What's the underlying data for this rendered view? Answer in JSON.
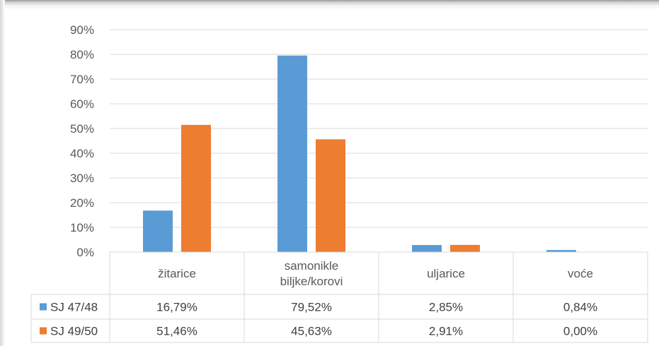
{
  "chart_data": {
    "type": "bar",
    "categories": [
      [
        "žitarice"
      ],
      [
        "samonikle",
        "biljke/korovi"
      ],
      [
        "uljarice"
      ],
      [
        "voće"
      ]
    ],
    "series": [
      {
        "name": "SJ 47/48",
        "color": "#5b9bd5",
        "values": [
          16.79,
          79.52,
          2.85,
          0.84
        ],
        "labels": [
          "16,79%",
          "79,52%",
          "2,85%",
          "0,84%"
        ]
      },
      {
        "name": "SJ 49/50",
        "color": "#ed7d31",
        "values": [
          51.46,
          45.63,
          2.91,
          0.0
        ],
        "labels": [
          "51,46%",
          "45,63%",
          "2,91%",
          "0,00%"
        ]
      }
    ],
    "yticks": [
      "0%",
      "10%",
      "20%",
      "30%",
      "40%",
      "50%",
      "60%",
      "70%",
      "80%",
      "90%"
    ],
    "ylim": [
      0,
      90
    ],
    "grid": true,
    "data_table": true
  }
}
